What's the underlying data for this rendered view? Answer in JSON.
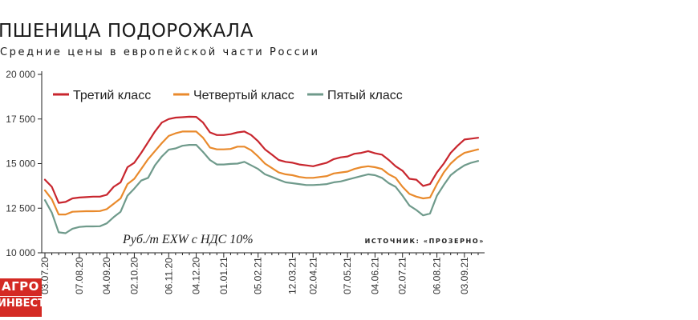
{
  "header": {
    "title": "ПШЕНИЦА ПОДОРОЖАЛА",
    "subtitle": "Средние цены в европейской части России"
  },
  "logo": {
    "line1": "АГРО",
    "line2": "ИНВЕСТОР"
  },
  "colors": {
    "series1": "#c8262e",
    "series2": "#e98a2c",
    "series3": "#6f9a8b",
    "axis": "#222222",
    "grid": "#cccccc"
  },
  "chart_data": {
    "type": "line",
    "title": "ПШЕНИЦА ПОДОРОЖАЛА",
    "subtitle": "Средние цены в европейской части России",
    "unit_note": "Руб./т EXW с НДС 10%",
    "source": "ИСТОЧНИК: «ПРОЗЕРНО»",
    "xlabel": "",
    "ylabel": "",
    "ylim": [
      10000,
      20000
    ],
    "yticks": [
      10000,
      12500,
      15000,
      17500,
      20000
    ],
    "ytick_labels": [
      "10 000",
      "12 500",
      "15 000",
      "17 500",
      "20 000"
    ],
    "grid": false,
    "legend_position": "top",
    "x": [
      "03.07.20",
      "10.07.20",
      "17.07.20",
      "24.07.20",
      "31.07.20",
      "07.08.20",
      "14.08.20",
      "21.08.20",
      "28.08.20",
      "04.09.20",
      "11.09.20",
      "18.09.20",
      "25.09.20",
      "02.10.20",
      "09.10.20",
      "16.10.20",
      "23.10.20",
      "30.10.20",
      "06.11.20",
      "13.11.20",
      "20.11.20",
      "27.11.20",
      "04.12.20",
      "11.12.20",
      "18.12.20",
      "25.12.20",
      "01.01.21",
      "08.01.21",
      "15.01.21",
      "22.01.21",
      "29.01.21",
      "05.02.21",
      "12.02.21",
      "19.02.21",
      "26.02.21",
      "05.03.21",
      "12.03.21",
      "19.03.21",
      "26.03.21",
      "02.04.21",
      "09.04.21",
      "16.04.21",
      "23.04.21",
      "30.04.21",
      "07.05.21",
      "14.05.21",
      "21.05.21",
      "28.05.21",
      "04.06.21",
      "11.06.21",
      "18.06.21",
      "25.06.21",
      "02.07.21",
      "09.07.21",
      "16.07.21",
      "23.07.21",
      "30.07.21",
      "06.08.21",
      "13.08.21",
      "20.08.21",
      "27.08.21",
      "03.09.21",
      "10.09.21",
      "17.09.21"
    ],
    "x_tick_labels": [
      "03.07.20",
      "07.08.20",
      "04.09.20",
      "02.10.20",
      "06.11.20",
      "04.12.20",
      "01.01.21",
      "05.02.21",
      "12.03.21",
      "02.04.21",
      "07.05.21",
      "04.06.21",
      "02.07.21",
      "06.08.21",
      "03.09.21"
    ],
    "series": [
      {
        "name": "Третий класс",
        "color": "#c8262e",
        "values": [
          14100,
          13700,
          12800,
          12850,
          13050,
          13100,
          13120,
          13150,
          13150,
          13250,
          13700,
          13950,
          14800,
          15050,
          15600,
          16200,
          16800,
          17300,
          17500,
          17580,
          17600,
          17630,
          17620,
          17300,
          16750,
          16600,
          16600,
          16650,
          16750,
          16800,
          16600,
          16250,
          15800,
          15500,
          15200,
          15100,
          15050,
          14950,
          14900,
          14850,
          14950,
          15050,
          15250,
          15350,
          15400,
          15550,
          15600,
          15700,
          15580,
          15500,
          15200,
          14850,
          14600,
          14150,
          14100,
          13750,
          13850,
          14500,
          15000,
          15600,
          16000,
          16350,
          16400,
          16450
        ]
      },
      {
        "name": "Четвертый класс",
        "color": "#e98a2c",
        "values": [
          13500,
          13000,
          12150,
          12150,
          12300,
          12320,
          12330,
          12330,
          12340,
          12450,
          12750,
          13050,
          13850,
          14150,
          14700,
          15250,
          15700,
          16150,
          16550,
          16700,
          16800,
          16800,
          16800,
          16450,
          15900,
          15800,
          15800,
          15820,
          15950,
          15950,
          15750,
          15400,
          15000,
          14750,
          14500,
          14400,
          14350,
          14250,
          14200,
          14200,
          14250,
          14300,
          14450,
          14500,
          14550,
          14700,
          14800,
          14850,
          14800,
          14700,
          14400,
          14200,
          13700,
          13300,
          13150,
          13050,
          13100,
          13850,
          14500,
          15000,
          15350,
          15600,
          15700,
          15800
        ]
      },
      {
        "name": "Пятый класс",
        "color": "#6f9a8b",
        "values": [
          12950,
          12250,
          11150,
          11100,
          11350,
          11450,
          11480,
          11480,
          11490,
          11650,
          12000,
          12300,
          13200,
          13600,
          14050,
          14200,
          14900,
          15400,
          15780,
          15850,
          16000,
          16050,
          16050,
          15650,
          15200,
          14950,
          14950,
          14980,
          15000,
          15100,
          14900,
          14700,
          14400,
          14250,
          14100,
          13950,
          13900,
          13850,
          13800,
          13800,
          13820,
          13850,
          13950,
          14000,
          14100,
          14200,
          14300,
          14400,
          14350,
          14200,
          13900,
          13700,
          13200,
          12650,
          12400,
          12100,
          12200,
          13200,
          13800,
          14350,
          14650,
          14900,
          15050,
          15150
        ]
      }
    ]
  }
}
